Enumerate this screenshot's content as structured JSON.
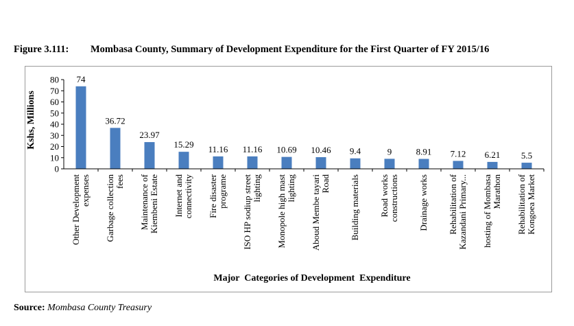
{
  "figure": {
    "number": "Figure 3.111:",
    "title": "Mombasa County, Summary of Development Expenditure for the First Quarter of FY 2015/16"
  },
  "source": {
    "label": "Source:",
    "value": "Mombasa County Treasury"
  },
  "colors": {
    "bar": "#4a7ebf",
    "axis": "#000000",
    "frame": "#9a9a9a"
  },
  "chart_data": {
    "type": "bar",
    "title": "",
    "xlabel": "Major  Categories of Development  Expenditure",
    "ylabel": "Kshs, Millions",
    "ylim": [
      0,
      80
    ],
    "yticks": [
      0,
      10,
      20,
      30,
      40,
      50,
      60,
      70,
      80
    ],
    "grid": false,
    "legend": "none",
    "categories": [
      [
        "Other Development",
        "expenses"
      ],
      [
        "Garbage collection",
        "fees"
      ],
      [
        "Maintenance of",
        "Kiembeni Estate"
      ],
      [
        "Internet and",
        "connectivity"
      ],
      [
        "Fire disaster",
        "programe"
      ],
      [
        "ISO HP sodiup street",
        "lighting"
      ],
      [
        "Monopole high mast",
        "lighting"
      ],
      [
        "Aboud Membe tayari",
        "Road"
      ],
      [
        "Building materials"
      ],
      [
        "Road works",
        "constructions"
      ],
      [
        "Drainage works"
      ],
      [
        "Rehabilitation of",
        "Kazandani Primary..."
      ],
      [
        "hosting of Mombasa",
        "Marathon"
      ],
      [
        "Rehabilitation of",
        "Kongoea Market"
      ]
    ],
    "values": [
      74,
      36.72,
      23.97,
      15.29,
      11.16,
      11.16,
      10.69,
      10.46,
      9.4,
      9,
      8.91,
      7.12,
      6.21,
      5.5
    ],
    "data_labels": [
      "74",
      "36.72",
      "23.97",
      "15.29",
      "11.16",
      "11.16",
      "10.69",
      "10.46",
      "9.4",
      "9",
      "8.91",
      "7.12",
      "6.21",
      "5.5"
    ]
  }
}
